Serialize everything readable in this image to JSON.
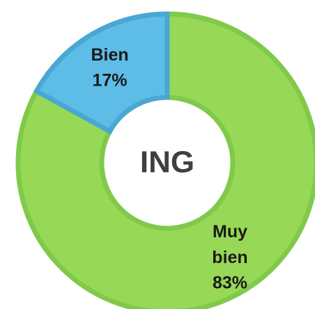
{
  "chart_data": {
    "type": "donut",
    "center_text": "ING",
    "categories": [
      "Muy bien",
      "Bien"
    ],
    "values": [
      83,
      17
    ],
    "value_labels": [
      "83%",
      "17%"
    ],
    "colors": [
      "#97d957",
      "#5dbde6"
    ],
    "stroke_colors": [
      "#80c94a",
      "#4aa7d4"
    ]
  }
}
